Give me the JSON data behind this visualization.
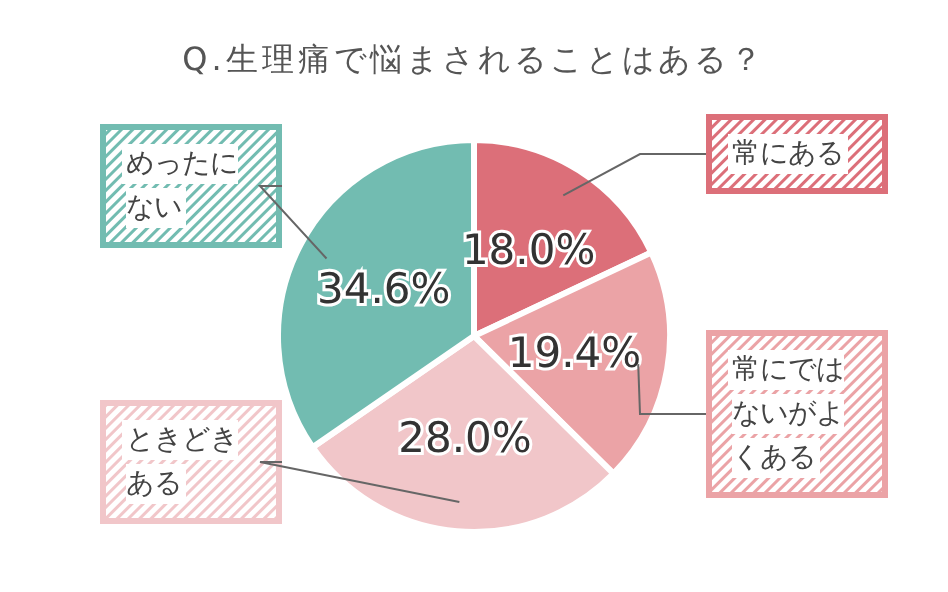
{
  "chart_data": {
    "type": "pie",
    "title": "Q.生理痛で悩まされることはある？",
    "categories": [
      "常にある",
      "常にではないがよくある",
      "ときどきある",
      "めったにない"
    ],
    "values": [
      18.0,
      19.4,
      28.0,
      34.6
    ],
    "value_labels": [
      "18.0%",
      "19.4%",
      "28.0%",
      "34.6%"
    ],
    "colors": [
      "#dc6f79",
      "#eba3a6",
      "#f1c6c9",
      "#72bcb1"
    ]
  }
}
